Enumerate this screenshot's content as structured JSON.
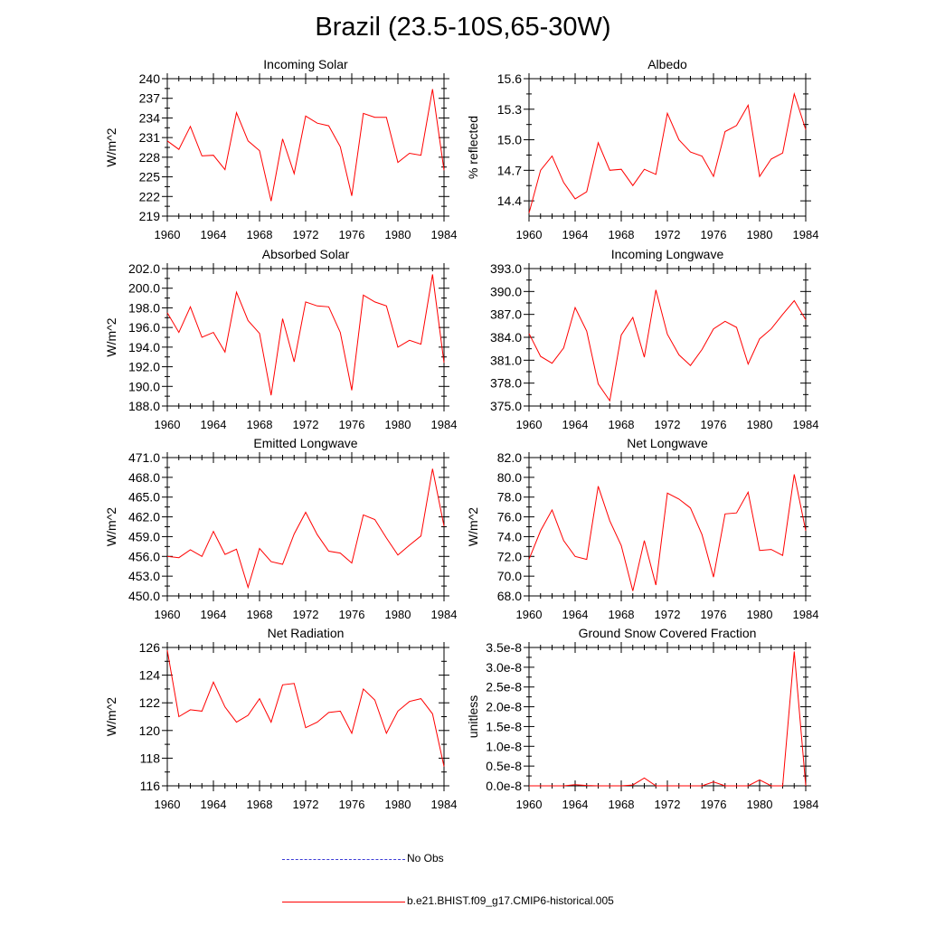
{
  "figure_title": "Brazil (23.5-10S,65-30W)",
  "legend": [
    {
      "label": "No Obs",
      "style": "dashed",
      "color": "#3b3bd6"
    },
    {
      "label": "b.e21.BHIST.f09_g17.CMIP6-historical.005",
      "style": "solid",
      "color": "#ff0000"
    }
  ],
  "chart_data": [
    {
      "type": "line",
      "title": "Incoming Solar",
      "ylabel": "W/m^2",
      "xlim": [
        1960,
        1984
      ],
      "x_ticks": [
        "1960",
        "1964",
        "1968",
        "1972",
        "1976",
        "1980",
        "1984"
      ],
      "ylim": [
        219,
        240
      ],
      "y_ticks": [
        "219",
        "222",
        "225",
        "228",
        "231",
        "234",
        "237",
        "240"
      ],
      "x": [
        1960,
        1961,
        1962,
        1963,
        1964,
        1965,
        1966,
        1967,
        1968,
        1969,
        1970,
        1971,
        1972,
        1973,
        1974,
        1975,
        1976,
        1977,
        1978,
        1979,
        1980,
        1981,
        1982,
        1983,
        1984
      ],
      "series": [
        {
          "name": "b.e21.BHIST.f09_g17.CMIP6-historical.005",
          "color": "#ff0000",
          "values": [
            230.5,
            229.2,
            232.7,
            228.2,
            228.3,
            226.1,
            234.8,
            230.5,
            229.0,
            221.3,
            230.8,
            225.5,
            234.3,
            233.2,
            232.8,
            229.6,
            222.1,
            234.7,
            234.1,
            234.1,
            227.2,
            228.6,
            228.3,
            238.4,
            226.0
          ]
        }
      ]
    },
    {
      "type": "line",
      "title": "Albedo",
      "ylabel": "% reflected",
      "xlim": [
        1960,
        1984
      ],
      "x_ticks": [
        "1960",
        "1964",
        "1968",
        "1972",
        "1976",
        "1980",
        "1984"
      ],
      "ylim": [
        14.25,
        15.6
      ],
      "y_ticks": [
        "14.4",
        "14.7",
        "15.0",
        "15.3",
        "15.6"
      ],
      "x": [
        1960,
        1961,
        1962,
        1963,
        1964,
        1965,
        1966,
        1967,
        1968,
        1969,
        1970,
        1971,
        1972,
        1973,
        1974,
        1975,
        1976,
        1977,
        1978,
        1979,
        1980,
        1981,
        1982,
        1983,
        1984
      ],
      "series": [
        {
          "name": "b.e21.BHIST.f09_g17.CMIP6-historical.005",
          "color": "#ff0000",
          "values": [
            14.28,
            14.7,
            14.84,
            14.58,
            14.42,
            14.49,
            14.97,
            14.7,
            14.71,
            14.55,
            14.71,
            14.66,
            15.26,
            15.0,
            14.88,
            14.84,
            14.64,
            15.08,
            15.14,
            15.34,
            14.64,
            14.81,
            14.87,
            15.45,
            15.1
          ]
        }
      ]
    },
    {
      "type": "line",
      "title": "Absorbed Solar",
      "ylabel": "W/m^2",
      "xlim": [
        1960,
        1984
      ],
      "x_ticks": [
        "1960",
        "1964",
        "1968",
        "1972",
        "1976",
        "1980",
        "1984"
      ],
      "ylim": [
        188.0,
        202.0
      ],
      "y_ticks": [
        "188.0",
        "190.0",
        "192.0",
        "194.0",
        "196.0",
        "198.0",
        "200.0",
        "202.0"
      ],
      "x": [
        1960,
        1961,
        1962,
        1963,
        1964,
        1965,
        1966,
        1967,
        1968,
        1969,
        1970,
        1971,
        1972,
        1973,
        1974,
        1975,
        1976,
        1977,
        1978,
        1979,
        1980,
        1981,
        1982,
        1983,
        1984
      ],
      "series": [
        {
          "name": "b.e21.BHIST.f09_g17.CMIP6-historical.005",
          "color": "#ff0000",
          "values": [
            197.5,
            195.5,
            198.1,
            195.0,
            195.5,
            193.5,
            199.6,
            196.7,
            195.4,
            189.1,
            196.9,
            192.5,
            198.6,
            198.2,
            198.1,
            195.5,
            189.6,
            199.3,
            198.6,
            198.2,
            194.0,
            194.7,
            194.3,
            201.4,
            192.4
          ]
        }
      ]
    },
    {
      "type": "line",
      "title": "Incoming Longwave",
      "ylabel": "",
      "xlim": [
        1960,
        1984
      ],
      "x_ticks": [
        "1960",
        "1964",
        "1968",
        "1972",
        "1976",
        "1980",
        "1984"
      ],
      "ylim": [
        375.0,
        393.0
      ],
      "y_ticks": [
        "375.0",
        "378.0",
        "381.0",
        "384.0",
        "387.0",
        "390.0",
        "393.0"
      ],
      "x": [
        1960,
        1961,
        1962,
        1963,
        1964,
        1965,
        1966,
        1967,
        1968,
        1969,
        1970,
        1971,
        1972,
        1973,
        1974,
        1975,
        1976,
        1977,
        1978,
        1979,
        1980,
        1981,
        1982,
        1983,
        1984
      ],
      "series": [
        {
          "name": "b.e21.BHIST.f09_g17.CMIP6-historical.005",
          "color": "#ff0000",
          "values": [
            384.5,
            381.5,
            380.6,
            382.6,
            387.9,
            384.8,
            377.9,
            375.7,
            384.3,
            386.6,
            381.4,
            390.2,
            384.4,
            381.7,
            380.3,
            382.4,
            385.1,
            386.1,
            385.3,
            380.5,
            383.8,
            385.1,
            387.0,
            388.8,
            386.3
          ]
        }
      ]
    },
    {
      "type": "line",
      "title": "Emitted Longwave",
      "ylabel": "W/m^2",
      "xlim": [
        1960,
        1984
      ],
      "x_ticks": [
        "1960",
        "1964",
        "1968",
        "1972",
        "1976",
        "1980",
        "1984"
      ],
      "ylim": [
        450.0,
        471.0
      ],
      "y_ticks": [
        "450.0",
        "453.0",
        "456.0",
        "459.0",
        "462.0",
        "465.0",
        "468.0",
        "471.0"
      ],
      "x": [
        1960,
        1961,
        1962,
        1963,
        1964,
        1965,
        1966,
        1967,
        1968,
        1969,
        1970,
        1971,
        1972,
        1973,
        1974,
        1975,
        1976,
        1977,
        1978,
        1979,
        1980,
        1981,
        1982,
        1983,
        1984
      ],
      "series": [
        {
          "name": "b.e21.BHIST.f09_g17.CMIP6-historical.005",
          "color": "#ff0000",
          "values": [
            456.0,
            455.8,
            457.0,
            456.0,
            459.8,
            456.3,
            457.1,
            451.3,
            457.2,
            455.2,
            454.8,
            459.4,
            462.7,
            459.3,
            456.8,
            456.5,
            455.0,
            462.3,
            461.6,
            458.8,
            456.2,
            457.7,
            459.1,
            469.3,
            460.6
          ]
        }
      ]
    },
    {
      "type": "line",
      "title": "Net Longwave",
      "ylabel": "W/m^2",
      "xlim": [
        1960,
        1984
      ],
      "x_ticks": [
        "1960",
        "1964",
        "1968",
        "1972",
        "1976",
        "1980",
        "1984"
      ],
      "ylim": [
        68.0,
        82.0
      ],
      "y_ticks": [
        "68.0",
        "70.0",
        "72.0",
        "74.0",
        "76.0",
        "78.0",
        "80.0",
        "82.0"
      ],
      "x": [
        1960,
        1961,
        1962,
        1963,
        1964,
        1965,
        1966,
        1967,
        1968,
        1969,
        1970,
        1971,
        1972,
        1973,
        1974,
        1975,
        1976,
        1977,
        1978,
        1979,
        1980,
        1981,
        1982,
        1983,
        1984
      ],
      "series": [
        {
          "name": "b.e21.BHIST.f09_g17.CMIP6-historical.005",
          "color": "#ff0000",
          "values": [
            71.7,
            74.6,
            76.7,
            73.6,
            72.0,
            71.7,
            79.1,
            75.6,
            73.1,
            68.5,
            73.6,
            69.1,
            78.4,
            77.8,
            76.9,
            74.2,
            69.9,
            76.3,
            76.4,
            78.5,
            72.6,
            72.7,
            72.1,
            80.3,
            74.6
          ]
        }
      ]
    },
    {
      "type": "line",
      "title": "Net Radiation",
      "ylabel": "W/m^2",
      "xlim": [
        1960,
        1984
      ],
      "x_ticks": [
        "1960",
        "1964",
        "1968",
        "1972",
        "1976",
        "1980",
        "1984"
      ],
      "ylim": [
        116,
        126
      ],
      "y_ticks": [
        "116",
        "118",
        "120",
        "122",
        "124",
        "126"
      ],
      "x": [
        1960,
        1961,
        1962,
        1963,
        1964,
        1965,
        1966,
        1967,
        1968,
        1969,
        1970,
        1971,
        1972,
        1973,
        1974,
        1975,
        1976,
        1977,
        1978,
        1979,
        1980,
        1981,
        1982,
        1983,
        1984
      ],
      "series": [
        {
          "name": "b.e21.BHIST.f09_g17.CMIP6-historical.005",
          "color": "#ff0000",
          "values": [
            125.8,
            121.0,
            121.5,
            121.4,
            123.5,
            121.7,
            120.6,
            121.1,
            122.3,
            120.6,
            123.3,
            123.4,
            120.2,
            120.6,
            121.3,
            121.4,
            119.8,
            123.0,
            122.2,
            119.8,
            121.4,
            122.1,
            122.3,
            121.2,
            117.4
          ]
        }
      ]
    },
    {
      "type": "line",
      "title": "Ground Snow Covered Fraction",
      "ylabel": "unitless",
      "xlim": [
        1960,
        1984
      ],
      "x_ticks": [
        "1960",
        "1964",
        "1968",
        "1972",
        "1976",
        "1980",
        "1984"
      ],
      "ylim": [
        0,
        3.5e-08
      ],
      "y_ticks": [
        "0.0e-8",
        "0.5e-8",
        "1.0e-8",
        "1.5e-8",
        "2.0e-8",
        "2.5e-8",
        "3.0e-8",
        "3.5e-8"
      ],
      "x": [
        1960,
        1961,
        1962,
        1963,
        1964,
        1965,
        1966,
        1967,
        1968,
        1969,
        1970,
        1971,
        1972,
        1973,
        1974,
        1975,
        1976,
        1977,
        1978,
        1979,
        1980,
        1981,
        1982,
        1983,
        1984
      ],
      "series": [
        {
          "name": "b.e21.BHIST.f09_g17.CMIP6-historical.005",
          "color": "#ff0000",
          "values": [
            0,
            0,
            0,
            0,
            3e-10,
            1e-10,
            0,
            0,
            0,
            2e-10,
            2e-09,
            0,
            0,
            0,
            0,
            0,
            1e-09,
            0,
            0,
            0,
            1.5e-09,
            0,
            0,
            3.4e-08,
            0
          ]
        }
      ]
    }
  ]
}
